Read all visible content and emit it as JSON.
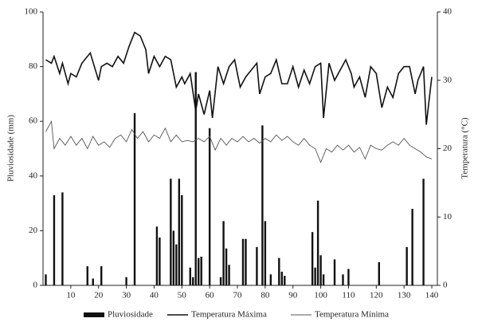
{
  "chart_data": {
    "type": "bar-line",
    "ylabel": "Pluviosidade (mm)",
    "y2label": "Temperatura (°C)",
    "xlim": [
      0,
      142
    ],
    "xticks": [
      10,
      20,
      30,
      40,
      50,
      60,
      70,
      80,
      90,
      100,
      110,
      120,
      130,
      140
    ],
    "ylim": [
      0,
      100
    ],
    "yticks": [
      0,
      20,
      40,
      60,
      80,
      100
    ],
    "y2lim": [
      0,
      40
    ],
    "y2ticks": [
      0,
      10,
      20,
      30,
      40
    ],
    "series": [
      {
        "name": "Pluviosidade",
        "type": "bar",
        "color": "#111111",
        "x": [
          1,
          4,
          7,
          16,
          18,
          21,
          30,
          33,
          41,
          42,
          46,
          47,
          48,
          49,
          50,
          53,
          54,
          55,
          56,
          57,
          60,
          64,
          65,
          66,
          67,
          72,
          73,
          77,
          79,
          80,
          82,
          85,
          86,
          87,
          97,
          98,
          99,
          100,
          101,
          105,
          108,
          110,
          121,
          131,
          133,
          137
        ],
        "values": [
          4,
          33,
          34,
          7,
          2.5,
          7,
          3,
          63,
          21.5,
          17.5,
          39,
          20,
          15,
          39,
          33,
          6.5,
          3,
          78,
          10,
          10.5,
          57.5,
          3,
          23.5,
          13.5,
          7.5,
          17,
          17,
          14,
          58.5,
          23.5,
          4,
          10,
          5,
          3.5,
          19.5,
          6.5,
          31,
          11,
          4,
          9.5,
          4,
          6,
          8.5,
          14,
          28,
          39
        ]
      },
      {
        "name": "Temperatura Máxima",
        "type": "line",
        "axis": "y2",
        "color": "#111111",
        "x": [
          1,
          3,
          4,
          6,
          7,
          9,
          10,
          12,
          14,
          17,
          20,
          21,
          23,
          25,
          27,
          29,
          31,
          33,
          35,
          37,
          38,
          40,
          42,
          44,
          46,
          48,
          50,
          51,
          53,
          55,
          56,
          58,
          60,
          61,
          63,
          65,
          67,
          69,
          71,
          73,
          75,
          77,
          78,
          80,
          82,
          84,
          86,
          88,
          90,
          92,
          94,
          96,
          98,
          100,
          101,
          103,
          105,
          107,
          109,
          111,
          112,
          114,
          116,
          118,
          120,
          122,
          124,
          126,
          128,
          130,
          132,
          134,
          135,
          137,
          138,
          140
        ],
        "values": [
          33,
          32.5,
          33.5,
          31,
          32.5,
          29.5,
          31,
          30.5,
          32.5,
          34,
          30,
          32,
          32.5,
          32,
          33.5,
          32.5,
          35,
          37,
          36.5,
          34.5,
          31,
          33.5,
          32,
          33.5,
          33,
          29,
          30.5,
          29.5,
          31,
          25.5,
          28,
          25,
          28.5,
          24.5,
          32,
          29.5,
          32,
          33,
          29,
          30.5,
          31.5,
          32.5,
          28,
          30.5,
          31,
          33,
          29.5,
          29.5,
          32,
          29,
          31.5,
          29.5,
          32,
          32.5,
          24.5,
          32.5,
          30,
          31.5,
          33,
          31,
          29,
          30.5,
          27.5,
          32,
          31,
          26,
          29,
          27.5,
          31,
          32,
          32,
          28,
          30,
          32,
          23.5,
          30.5
        ]
      },
      {
        "name": "Temperatura Mínima",
        "type": "line",
        "axis": "y2",
        "color": "#555555",
        "x": [
          1,
          3,
          4,
          6,
          8,
          10,
          12,
          14,
          16,
          18,
          20,
          22,
          24,
          26,
          28,
          30,
          32,
          34,
          36,
          38,
          40,
          42,
          44,
          46,
          48,
          50,
          52,
          54,
          56,
          58,
          60,
          62,
          64,
          66,
          68,
          70,
          72,
          74,
          76,
          78,
          80,
          82,
          84,
          86,
          88,
          90,
          92,
          94,
          96,
          98,
          100,
          102,
          104,
          106,
          108,
          110,
          112,
          114,
          116,
          118,
          120,
          122,
          124,
          126,
          128,
          130,
          132,
          134,
          136,
          138,
          140
        ],
        "values": [
          22.5,
          24,
          20,
          21.5,
          20.5,
          21.8,
          20.5,
          21.5,
          20,
          21.8,
          20.5,
          21,
          20.2,
          21.5,
          22,
          21,
          22.8,
          21.5,
          22.5,
          21,
          22,
          21.5,
          23,
          21,
          22,
          21,
          21.2,
          21,
          21.5,
          21,
          21.8,
          19.8,
          21.5,
          20.5,
          21.5,
          21,
          21.8,
          21,
          21.5,
          20.8,
          21.5,
          21,
          22,
          21.2,
          21.8,
          21,
          20.5,
          21.5,
          20.5,
          20,
          18,
          20,
          19.5,
          20.5,
          19.8,
          20.5,
          19.5,
          20.2,
          18.5,
          20.5,
          20,
          19.8,
          20.5,
          21,
          20.5,
          21.5,
          20.5,
          20,
          19.5,
          18.8,
          18.5
        ]
      }
    ]
  }
}
